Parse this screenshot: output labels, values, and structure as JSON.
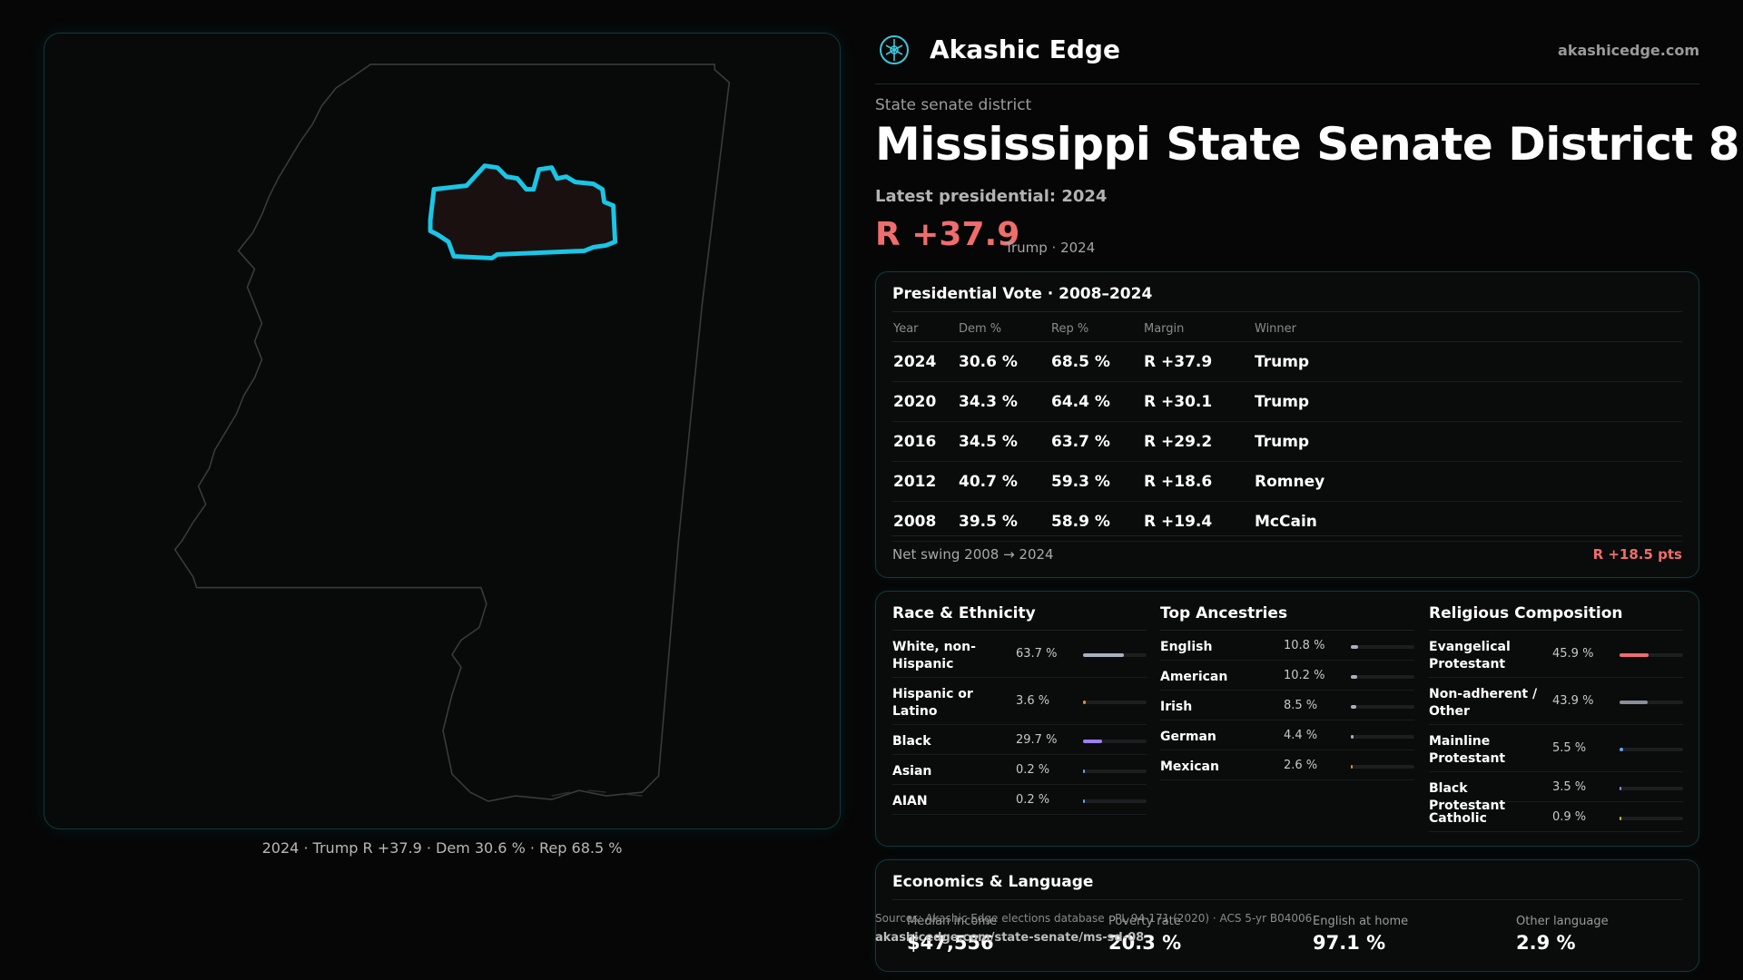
{
  "brand": {
    "name": "Akashic Edge",
    "url": "akashicedge.com"
  },
  "header": {
    "eyebrow": "State senate district",
    "title": "Mississippi State Senate District 8",
    "latest": "Latest presidential: 2024",
    "margin": "R +37.9",
    "margin_sub": "Trump · 2024"
  },
  "map": {
    "caption": "2024 · Trump R +37.9 · Dem 30.6 % · Rep 68.5 %",
    "outline_color": "#3a3a3a",
    "district_color": "#19c6e6"
  },
  "presidential": {
    "title": "Presidential Vote · 2008–2024",
    "columns": [
      "Year",
      "Dem %",
      "Rep %",
      "Margin",
      "Winner"
    ],
    "rows": [
      {
        "year": "2024",
        "dem": "30.6 %",
        "rep": "68.5 %",
        "margin": "R +37.9",
        "winner": "Trump"
      },
      {
        "year": "2020",
        "dem": "34.3 %",
        "rep": "64.4 %",
        "margin": "R +30.1",
        "winner": "Trump"
      },
      {
        "year": "2016",
        "dem": "34.5 %",
        "rep": "63.7 %",
        "margin": "R +29.2",
        "winner": "Trump"
      },
      {
        "year": "2012",
        "dem": "40.7 %",
        "rep": "59.3 %",
        "margin": "R +18.6",
        "winner": "Romney"
      },
      {
        "year": "2008",
        "dem": "39.5 %",
        "rep": "58.9 %",
        "margin": "R +19.4",
        "winner": "McCain"
      }
    ],
    "swing_label": "Net swing 2008 → 2024",
    "swing_value": "R +18.5 pts"
  },
  "race": {
    "title": "Race & Ethnicity",
    "items": [
      {
        "label": "White, non-Hispanic",
        "value": "63.7 %",
        "pct": 63.7,
        "color": "#a9b0c0"
      },
      {
        "label": "Hispanic or Latino",
        "value": "3.6 %",
        "pct": 3.6,
        "color": "#e0902a"
      },
      {
        "label": "Black",
        "value": "29.7 %",
        "pct": 29.7,
        "color": "#9f7ff0"
      },
      {
        "label": "Asian",
        "value": "0.2 %",
        "pct": 0.2,
        "color": "#5ea3f5"
      },
      {
        "label": "AIAN",
        "value": "0.2 %",
        "pct": 0.2,
        "color": "#5ea3f5"
      }
    ]
  },
  "ancestry": {
    "title": "Top Ancestries",
    "items": [
      {
        "label": "English",
        "value": "10.8 %",
        "pct": 10.8,
        "color": "#a9b0c0"
      },
      {
        "label": "American",
        "value": "10.2 %",
        "pct": 10.2,
        "color": "#a9b0c0"
      },
      {
        "label": "Irish",
        "value": "8.5 %",
        "pct": 8.5,
        "color": "#a9b0c0"
      },
      {
        "label": "German",
        "value": "4.4 %",
        "pct": 4.4,
        "color": "#a9b0c0"
      },
      {
        "label": "Mexican",
        "value": "2.6 %",
        "pct": 2.6,
        "color": "#e0902a"
      }
    ]
  },
  "religion": {
    "title": "Religious Composition",
    "items": [
      {
        "label": "Evangelical Protestant",
        "value": "45.9 %",
        "pct": 45.9,
        "color": "#f06d6d"
      },
      {
        "label": "Non-adherent / Other",
        "value": "43.9 %",
        "pct": 43.9,
        "color": "#8a8f98"
      },
      {
        "label": "Mainline Protestant",
        "value": "5.5 %",
        "pct": 5.5,
        "color": "#5ea3f5"
      },
      {
        "label": "Black Protestant",
        "value": "3.5 %",
        "pct": 3.5,
        "color": "#9f7ff0"
      },
      {
        "label": "Catholic",
        "value": "0.9 %",
        "pct": 0.9,
        "color": "#c8b840"
      }
    ]
  },
  "economics": {
    "title": "Economics & Language",
    "stats": [
      {
        "label": "Median income",
        "value": "$47,556"
      },
      {
        "label": "Poverty rate",
        "value": "20.3 %"
      },
      {
        "label": "English at home",
        "value": "97.1 %"
      },
      {
        "label": "Other language",
        "value": "2.9 %"
      }
    ]
  },
  "footer": {
    "sources": "Sources: Akashic Edge elections database · PL 94-171 (2020) · ACS 5-yr B04006",
    "url": "akashicedge.com/state-senate/ms-sd-08"
  }
}
